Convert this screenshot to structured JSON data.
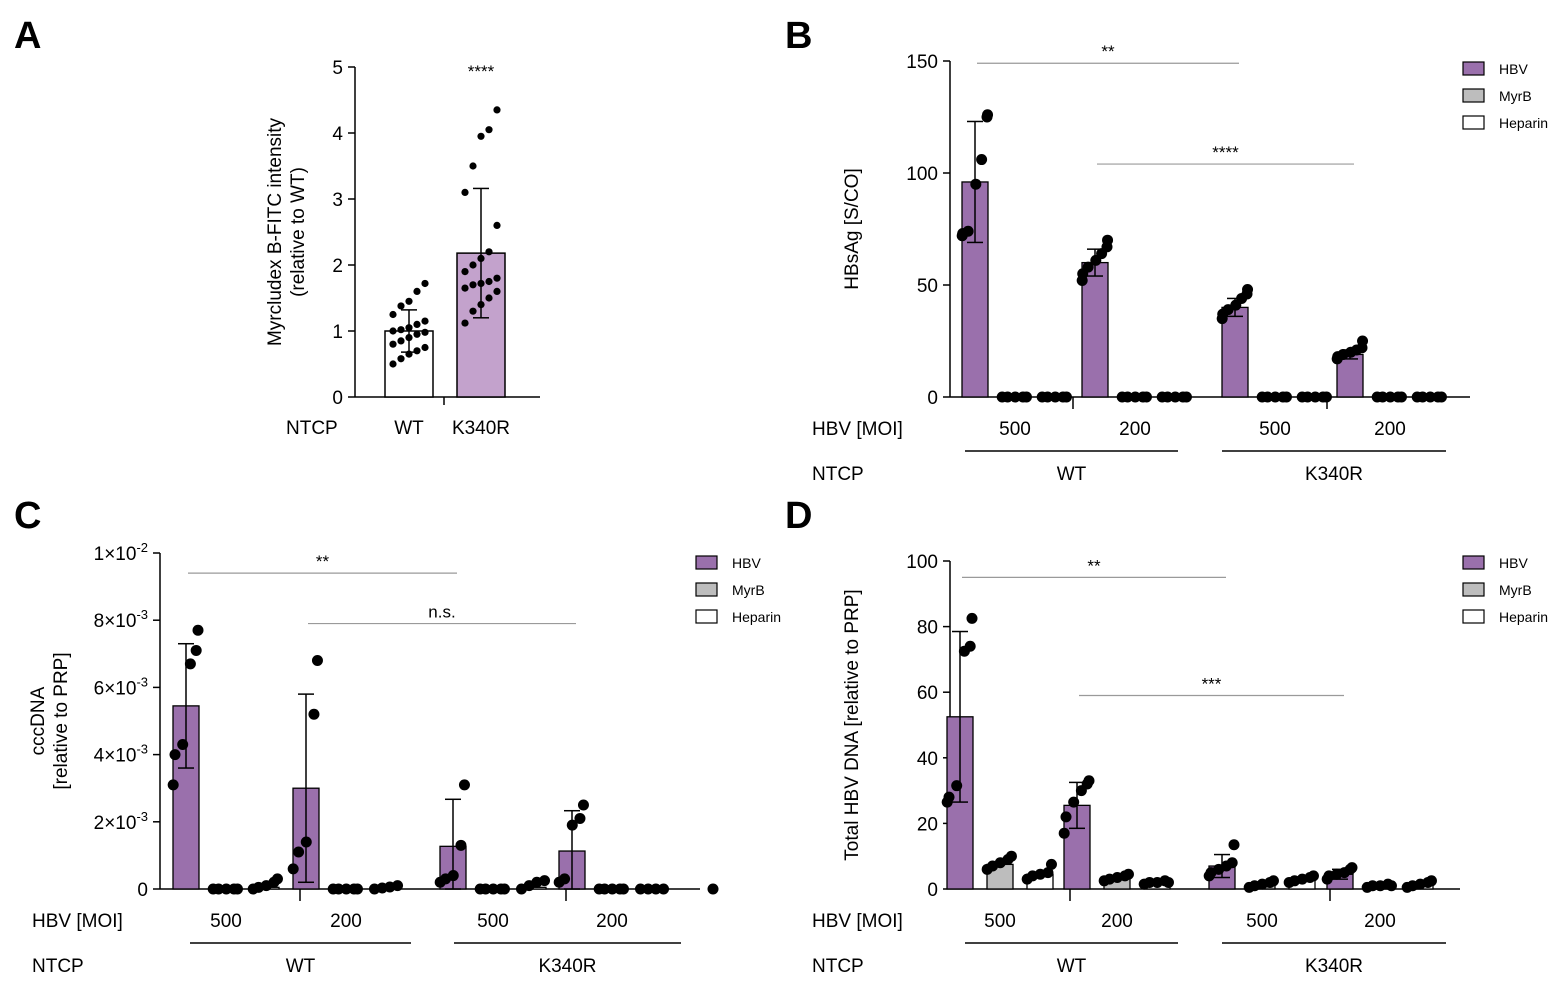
{
  "chart_data": [
    {
      "panel": "A",
      "type": "bar",
      "ylabel": [
        "Myrcludex B-FITC intensity",
        "(relative to WT)"
      ],
      "ylim": [
        0,
        5
      ],
      "yticks": [
        "0",
        "1",
        "2",
        "3",
        "4",
        "5"
      ],
      "row_labels": {
        "ntcp": "NTCP"
      },
      "categories": [
        "WT",
        "K340R"
      ],
      "bars": [
        {
          "label": "WT",
          "mean": 1.0,
          "sd": 0.32,
          "color": "#ffffff",
          "points": [
            0.5,
            0.58,
            0.65,
            0.7,
            0.75,
            0.8,
            0.85,
            0.9,
            0.95,
            0.98,
            1.0,
            1.02,
            1.05,
            1.1,
            1.15,
            1.25,
            1.38,
            1.45,
            1.6,
            1.72
          ]
        },
        {
          "label": "K340R",
          "mean": 2.18,
          "sd": 0.98,
          "color": "#c3a2cc",
          "points": [
            1.12,
            1.3,
            1.4,
            1.5,
            1.6,
            1.65,
            1.7,
            1.72,
            1.75,
            1.8,
            1.9,
            2.0,
            2.1,
            2.2,
            2.6,
            3.1,
            3.5,
            3.95,
            4.05,
            4.35
          ]
        }
      ],
      "significance": [
        {
          "label": "****",
          "bar": 1
        }
      ]
    },
    {
      "panel": "B",
      "type": "bar",
      "ylabel": [
        "HBsAg [S/CO]"
      ],
      "ylim": [
        0,
        150
      ],
      "yticks": [
        "0",
        "50",
        "100",
        "150"
      ],
      "row_labels": {
        "moi": "HBV [MOI]",
        "ntcp": "NTCP"
      },
      "moi_labels": [
        "500",
        "200",
        "500",
        "200"
      ],
      "ntcp_groups": [
        "WT",
        "K340R"
      ],
      "legend": [
        {
          "label": "HBV",
          "color": "#9a70ac"
        },
        {
          "label": "MyrB",
          "color": "#bdbdbd"
        },
        {
          "label": "Heparin",
          "color": "#ffffff"
        }
      ],
      "series": [
        {
          "name": "HBV",
          "values": [
            96,
            60,
            40,
            19
          ],
          "sd": [
            27,
            6,
            4,
            2
          ]
        },
        {
          "name": "MyrB",
          "values": [
            0.5,
            0.5,
            0.5,
            0.5
          ]
        },
        {
          "name": "Heparin",
          "values": [
            0.5,
            0.5,
            0.5,
            0.5
          ]
        }
      ],
      "points": [
        [
          [
            72,
            73,
            74,
            95,
            106,
            125,
            126
          ],
          [
            0,
            0,
            0,
            0,
            0
          ],
          [
            0,
            0,
            0,
            0,
            0
          ]
        ],
        [
          [
            52,
            55,
            58,
            61,
            64,
            67,
            70
          ],
          [
            0,
            0,
            0,
            0,
            0
          ],
          [
            0,
            0,
            0,
            0,
            0
          ]
        ],
        [
          [
            35,
            37,
            39,
            41,
            44,
            46,
            48
          ],
          [
            0,
            0,
            0,
            0,
            0
          ],
          [
            0,
            0,
            0,
            0,
            0
          ]
        ],
        [
          [
            17,
            18,
            19,
            20,
            21,
            22,
            25
          ],
          [
            0,
            0,
            0,
            0,
            0
          ],
          [
            0,
            0,
            0,
            0,
            0
          ]
        ]
      ],
      "significance": [
        {
          "label": "**",
          "from": 0,
          "to": 2,
          "level": 149
        },
        {
          "label": "****",
          "from": 1,
          "to": 3,
          "level": 104
        }
      ]
    },
    {
      "panel": "C",
      "type": "bar",
      "ylabel": [
        "cccDNA",
        "[relative to PRP]"
      ],
      "ylim": [
        0,
        0.01
      ],
      "yticks": [
        "0",
        "2×10⁻³",
        "4×10⁻³",
        "6×10⁻³",
        "8×10⁻³",
        "1×10⁻²"
      ],
      "row_labels": {
        "moi": "HBV [MOI]",
        "ntcp": "NTCP"
      },
      "moi_labels": [
        "500",
        "200",
        "500",
        "200"
      ],
      "ntcp_groups": [
        "WT",
        "K340R"
      ],
      "legend": [
        {
          "label": "HBV",
          "color": "#9a70ac"
        },
        {
          "label": "MyrB",
          "color": "#bdbdbd"
        },
        {
          "label": "Heparin",
          "color": "#ffffff"
        }
      ],
      "series": [
        {
          "name": "HBV",
          "values": [
            0.00545,
            0.003,
            0.00127,
            0.00113
          ],
          "sd": [
            0.00185,
            0.0028,
            0.0014,
            0.0012
          ]
        },
        {
          "name": "MyrB",
          "values": [
            2e-05,
            2e-05,
            2e-05,
            2e-05
          ]
        },
        {
          "name": "Heparin",
          "values": [
            5e-05,
            3e-05,
            5e-05,
            2e-05
          ]
        }
      ],
      "points": [
        [
          [
            0.0031,
            0.004,
            0.0043,
            0.0067,
            0.0071,
            0.0077
          ],
          [
            0,
            0,
            0,
            0,
            0
          ],
          [
            0,
            5e-05,
            0.0001,
            0.0002,
            0.0003
          ]
        ],
        [
          [
            0.0006,
            0.0011,
            0.0014,
            0.0052,
            0.0068
          ],
          [
            0,
            0,
            0,
            0,
            0
          ],
          [
            0,
            3e-05,
            6e-05,
            0.0001
          ]
        ],
        [
          [
            0.0002,
            0.0003,
            0.0004,
            0.0013,
            0.0031
          ],
          [
            0,
            0,
            0,
            0,
            0
          ],
          [
            0,
            0.0001,
            0.0002,
            0.00025
          ]
        ],
        [
          [
            0.0002,
            0.0003,
            0.0019,
            0.0021,
            0.0025
          ],
          [
            0,
            0,
            0,
            0,
            0
          ],
          [
            0,
            0,
            0,
            0
          ]
        ]
      ],
      "extra_points": [
        0
      ],
      "significance": [
        {
          "label": "**",
          "from": 0,
          "to": 2,
          "level": 0.0094
        },
        {
          "label": "n.s.",
          "from": 1,
          "to": 3,
          "level": 0.0079
        }
      ]
    },
    {
      "panel": "D",
      "type": "bar",
      "ylabel": [
        "Total HBV DNA [relative to PRP]"
      ],
      "ylim": [
        0,
        100
      ],
      "yticks": [
        "0",
        "20",
        "40",
        "60",
        "80",
        "100"
      ],
      "row_labels": {
        "moi": "HBV [MOI]",
        "ntcp": "NTCP"
      },
      "moi_labels": [
        "500",
        "200",
        "500",
        "200"
      ],
      "ntcp_groups": [
        "WT",
        "K340R"
      ],
      "legend": [
        {
          "label": "HBV",
          "color": "#9a70ac"
        },
        {
          "label": "MyrB",
          "color": "#bdbdbd"
        },
        {
          "label": "Heparin",
          "color": "#ffffff"
        }
      ],
      "series": [
        {
          "name": "HBV",
          "values": [
            52.5,
            25.5,
            7,
            4.5
          ],
          "sd": [
            26,
            7,
            3.5,
            1.5
          ]
        },
        {
          "name": "MyrB",
          "values": [
            7.5,
            3.5,
            1.5,
            1
          ]
        },
        {
          "name": "Heparin",
          "values": [
            4.5,
            2,
            3,
            1.5
          ]
        }
      ],
      "points": [
        [
          [
            26.5,
            28,
            31.5,
            72.5,
            74,
            82.5
          ],
          [
            6,
            7,
            8,
            9,
            10
          ],
          [
            3,
            4,
            4.5,
            5,
            7.5
          ]
        ],
        [
          [
            17,
            22,
            26.5,
            30,
            32,
            33
          ],
          [
            2.5,
            3,
            3.5,
            4,
            4.5
          ],
          [
            1.5,
            2,
            2,
            2.5,
            2
          ]
        ],
        [
          [
            4,
            5,
            6,
            7,
            8,
            13.5
          ],
          [
            0.5,
            1,
            1.5,
            2,
            2.5
          ],
          [
            2,
            2.5,
            3,
            3.5,
            4
          ]
        ],
        [
          [
            3,
            4,
            4.5,
            5,
            6,
            6.5
          ],
          [
            0.5,
            1,
            1,
            1.5,
            1
          ],
          [
            0.5,
            1,
            1.5,
            2,
            2.5
          ]
        ]
      ],
      "significance": [
        {
          "label": "**",
          "from": 0,
          "to": 2,
          "level": 95
        },
        {
          "label": "***",
          "from": 1,
          "to": 3,
          "level": 59
        }
      ]
    }
  ]
}
